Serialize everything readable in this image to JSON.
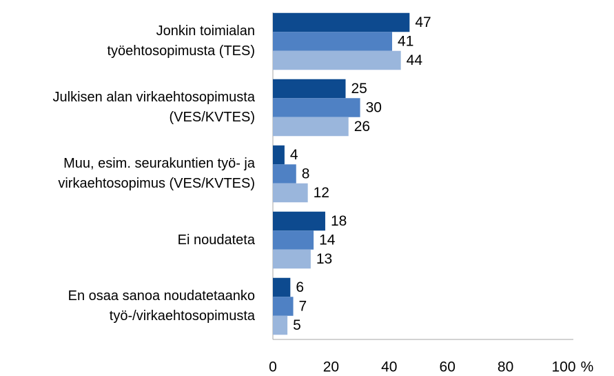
{
  "chart_data": {
    "type": "bar",
    "orientation": "horizontal",
    "categories": [
      "Jonkin toimialan\ntyöehtosopimusta (TES)",
      "Julkisen alan virkaehtosopimusta\n(VES/KVTES)",
      "Muu, esim. seurakuntien työ- ja\nvirkaehtosopimus (VES/KVTES)",
      "Ei noudateta",
      "En osaa sanoa noudatetaanko\ntyö-/virkaehtosopimusta"
    ],
    "series": [
      {
        "color": "#0d4a8f",
        "values": [
          47,
          25,
          4,
          18,
          6
        ]
      },
      {
        "color": "#4f81c4",
        "values": [
          41,
          30,
          8,
          14,
          7
        ]
      },
      {
        "color": "#9ab6dc",
        "values": [
          44,
          26,
          12,
          13,
          5
        ]
      }
    ],
    "xlabel": "%",
    "xlim": [
      0,
      100
    ],
    "xticks": [
      0,
      20,
      40,
      60,
      80,
      100
    ],
    "grid": false
  }
}
